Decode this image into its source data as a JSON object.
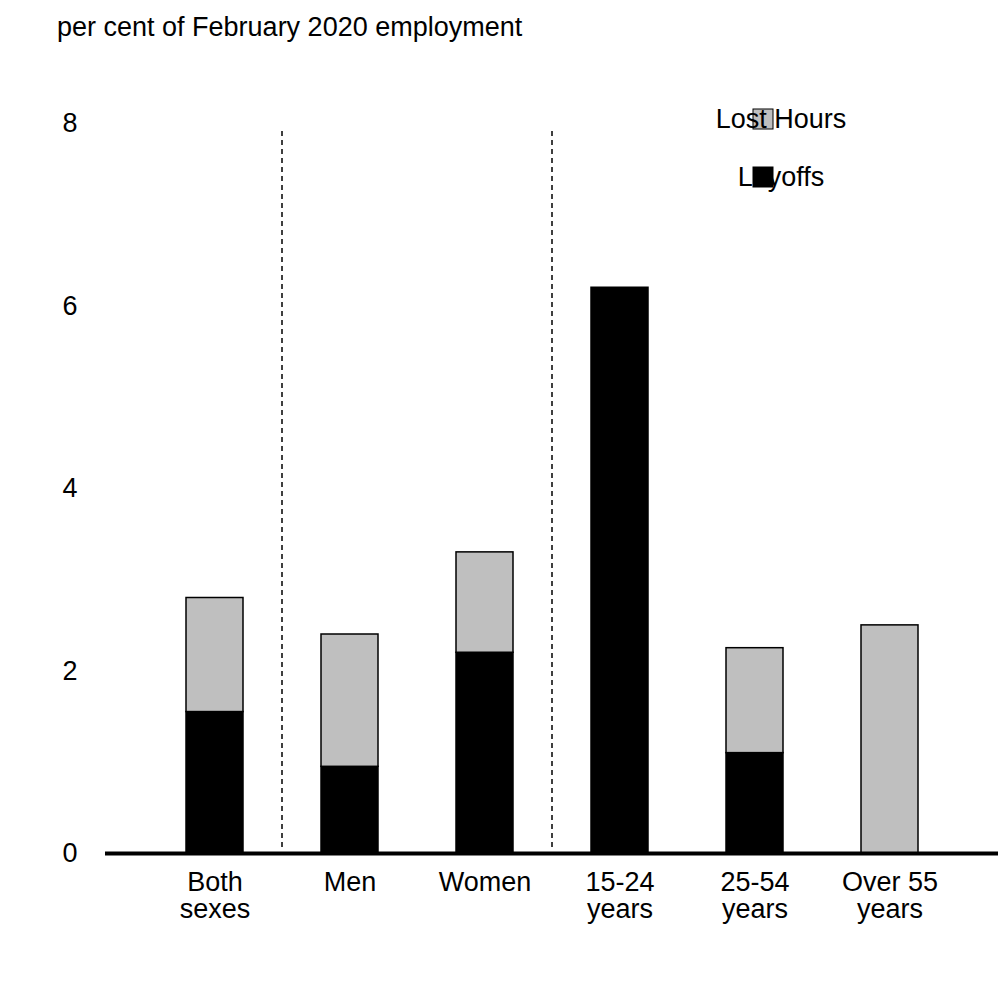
{
  "chart_data": {
    "type": "bar",
    "stacked": true,
    "ylabel": "per cent of February 2020 employment",
    "categories": [
      "Both sexes",
      "Men",
      "Women",
      "15-24 years",
      "25-54 years",
      "Over 55 years"
    ],
    "series": [
      {
        "name": "Layoffs",
        "color": "#000000",
        "values": [
          1.55,
          0.95,
          2.2,
          6.2,
          1.1,
          0
        ]
      },
      {
        "name": "Lost Hours",
        "color": "#bfbfbf",
        "values": [
          1.25,
          1.45,
          1.1,
          0,
          1.15,
          2.5
        ]
      }
    ],
    "ylim": [
      0,
      8
    ],
    "yticks": [
      0,
      2,
      4,
      6,
      8
    ],
    "grid": false,
    "legend": "top-right"
  }
}
